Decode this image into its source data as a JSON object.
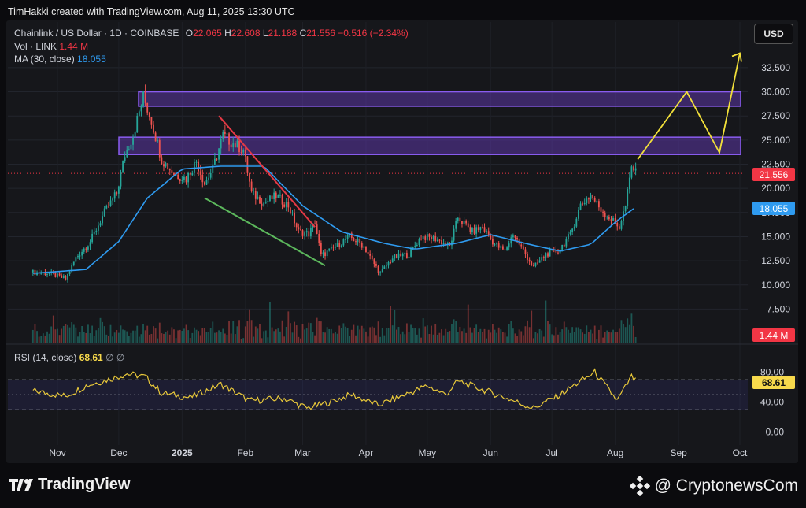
{
  "caption": "TimHakki created with TradingView.com, Aug 11, 2025 13:30 UTC",
  "legend": {
    "symbol": "Chainlink / US Dollar · 1D · COINBASE",
    "ohlc_o_label": "O",
    "ohlc_o": "22.065",
    "ohlc_h_label": "H",
    "ohlc_h": "22.608",
    "ohlc_l_label": "L",
    "ohlc_l": "21.188",
    "ohlc_c_label": "C",
    "ohlc_c": "21.556",
    "change": "−0.516 (−2.34%)",
    "vol_label": "Vol · LINK",
    "vol_value": "1.44 M",
    "ma_label": "MA (30, close)",
    "ma_value": "18.055",
    "rsi_label": "RSI (14, close)",
    "rsi_value": "68.61",
    "rsi_extra": "∅ ∅"
  },
  "currency_button": "USD",
  "price_tags": {
    "last": "21.556",
    "ma": "18.055",
    "volume": "1.44 M",
    "rsi": "68.61"
  },
  "footer": {
    "brand": "TradingView",
    "watermark": "@ CryptonewsCom"
  },
  "colors": {
    "up": "#26a69a",
    "down": "#ef5350",
    "ma": "#2f9bf0",
    "rsi": "#e8c83a",
    "zone": "#6a3fc4",
    "projection": "#f2e03a",
    "trend_red": "#e53945",
    "trend_green": "#5cb85c"
  },
  "chart_data": {
    "type": "candlestick",
    "title": "Chainlink / US Dollar · 1D · COINBASE",
    "y_ticks": [
      "32.500",
      "30.000",
      "27.500",
      "25.000",
      "22.500",
      "20.000",
      "17.500",
      "15.000",
      "12.500",
      "10.000",
      "7.500"
    ],
    "x_ticks": [
      "Nov",
      "Dec",
      "2025",
      "Feb",
      "Mar",
      "Apr",
      "May",
      "Jun",
      "Jul",
      "Aug",
      "Sep",
      "Oct"
    ],
    "rsi_ticks": [
      "80.00",
      "40.00",
      "0.00"
    ],
    "ylim": [
      5.5,
      34.5
    ],
    "price_path": [
      [
        "2024-10-20",
        11.3
      ],
      [
        "2024-10-28",
        11.2
      ],
      [
        "2024-11-05",
        10.6
      ],
      [
        "2024-11-10",
        12.8
      ],
      [
        "2024-11-17",
        14.5
      ],
      [
        "2024-11-24",
        17.5
      ],
      [
        "2024-11-30",
        19.5
      ],
      [
        "2024-12-04",
        23.5
      ],
      [
        "2024-12-08",
        25.5
      ],
      [
        "2024-12-13",
        29.5
      ],
      [
        "2024-12-17",
        27.0
      ],
      [
        "2024-12-22",
        23.0
      ],
      [
        "2024-12-28",
        21.5
      ],
      [
        "2025-01-03",
        21.0
      ],
      [
        "2025-01-08",
        22.8
      ],
      [
        "2025-01-12",
        20.5
      ],
      [
        "2025-01-16",
        22.0
      ],
      [
        "2025-01-21",
        25.5
      ],
      [
        "2025-01-25",
        24.8
      ],
      [
        "2025-01-31",
        24.0
      ],
      [
        "2025-02-04",
        19.5
      ],
      [
        "2025-02-10",
        18.5
      ],
      [
        "2025-02-16",
        19.2
      ],
      [
        "2025-02-22",
        18.2
      ],
      [
        "2025-02-27",
        15.5
      ],
      [
        "2025-03-04",
        15.3
      ],
      [
        "2025-03-07",
        16.5
      ],
      [
        "2025-03-10",
        13.0
      ],
      [
        "2025-03-16",
        13.8
      ],
      [
        "2025-03-24",
        15.0
      ],
      [
        "2025-03-31",
        14.0
      ],
      [
        "2025-04-04",
        12.5
      ],
      [
        "2025-04-08",
        11.2
      ],
      [
        "2025-04-14",
        12.8
      ],
      [
        "2025-04-22",
        13.2
      ],
      [
        "2025-04-28",
        15.0
      ],
      [
        "2025-05-05",
        14.8
      ],
      [
        "2025-05-12",
        14.0
      ],
      [
        "2025-05-16",
        17.0
      ],
      [
        "2025-05-23",
        15.5
      ],
      [
        "2025-05-28",
        16.0
      ],
      [
        "2025-06-03",
        14.2
      ],
      [
        "2025-06-08",
        13.5
      ],
      [
        "2025-06-12",
        15.3
      ],
      [
        "2025-06-18",
        13.2
      ],
      [
        "2025-06-22",
        11.8
      ],
      [
        "2025-06-28",
        13.2
      ],
      [
        "2025-07-04",
        13.5
      ],
      [
        "2025-07-10",
        15.2
      ],
      [
        "2025-07-15",
        18.3
      ],
      [
        "2025-07-20",
        19.3
      ],
      [
        "2025-07-25",
        17.8
      ],
      [
        "2025-07-30",
        16.8
      ],
      [
        "2025-08-03",
        16.0
      ],
      [
        "2025-08-06",
        18.2
      ],
      [
        "2025-08-09",
        22.2
      ],
      [
        "2025-08-10",
        22.06
      ],
      [
        "2025-08-11",
        21.556
      ]
    ],
    "ma_path": [
      [
        "2024-10-20",
        11.2
      ],
      [
        "2024-11-15",
        11.6
      ],
      [
        "2024-12-01",
        14.5
      ],
      [
        "2024-12-15",
        19.0
      ],
      [
        "2025-01-01",
        22.0
      ],
      [
        "2025-01-20",
        22.3
      ],
      [
        "2025-02-10",
        22.3
      ],
      [
        "2025-03-01",
        18.2
      ],
      [
        "2025-03-20",
        15.5
      ],
      [
        "2025-04-10",
        14.3
      ],
      [
        "2025-04-25",
        13.7
      ],
      [
        "2025-05-15",
        14.3
      ],
      [
        "2025-06-01",
        15.2
      ],
      [
        "2025-06-20",
        14.2
      ],
      [
        "2025-07-05",
        13.5
      ],
      [
        "2025-07-20",
        14.2
      ],
      [
        "2025-08-01",
        16.5
      ],
      [
        "2025-08-11",
        18.055
      ]
    ],
    "rsi_path": [
      [
        "2024-10-20",
        55
      ],
      [
        "2024-11-05",
        48
      ],
      [
        "2024-11-15",
        62
      ],
      [
        "2024-11-28",
        72
      ],
      [
        "2024-12-05",
        78
      ],
      [
        "2024-12-14",
        74
      ],
      [
        "2024-12-22",
        52
      ],
      [
        "2025-01-05",
        46
      ],
      [
        "2025-01-20",
        64
      ],
      [
        "2025-02-03",
        42
      ],
      [
        "2025-02-20",
        45
      ],
      [
        "2025-03-03",
        32
      ],
      [
        "2025-03-12",
        38
      ],
      [
        "2025-03-25",
        50
      ],
      [
        "2025-04-07",
        36
      ],
      [
        "2025-04-22",
        52
      ],
      [
        "2025-05-01",
        62
      ],
      [
        "2025-05-10",
        50
      ],
      [
        "2025-05-16",
        68
      ],
      [
        "2025-05-30",
        55
      ],
      [
        "2025-06-12",
        42
      ],
      [
        "2025-06-22",
        32
      ],
      [
        "2025-07-05",
        50
      ],
      [
        "2025-07-15",
        68
      ],
      [
        "2025-07-22",
        80
      ],
      [
        "2025-08-02",
        42
      ],
      [
        "2025-08-09",
        74
      ],
      [
        "2025-08-11",
        68.61
      ]
    ],
    "resistance_zones": [
      [
        28.5,
        30.0
      ],
      [
        23.5,
        25.3
      ]
    ],
    "trendline_red": [
      [
        "2025-01-19",
        27.5
      ],
      [
        "2025-03-07",
        16.0
      ]
    ],
    "trendline_green": [
      [
        "2025-01-12",
        19.0
      ],
      [
        "2025-03-12",
        12.0
      ]
    ],
    "projection": [
      [
        "2025-08-12",
        23.0
      ],
      [
        "2025-09-05",
        30.0
      ],
      [
        "2025-09-21",
        23.7
      ],
      [
        "2025-10-01",
        34.0
      ]
    ],
    "current_price": 21.556
  }
}
